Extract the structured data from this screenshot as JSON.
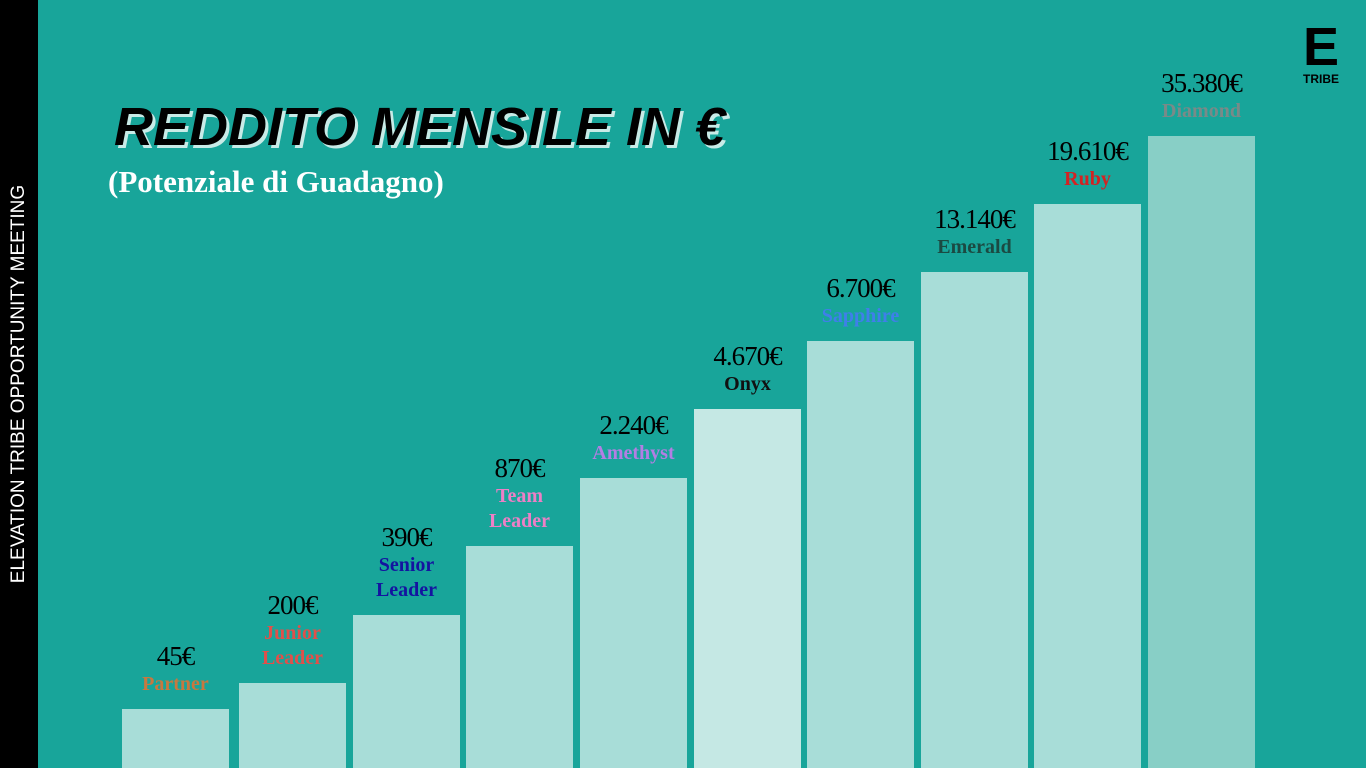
{
  "sidebar": "ELEVATION TRIBE OPPORTUNITY MEETING",
  "logo": {
    "letter": "E",
    "text": "TRIBE"
  },
  "title": "REDDITO MENSILE IN €",
  "subtitle": "(Potenziale di Guadagno)",
  "steps": [
    {
      "value": "45€",
      "name": "Partner",
      "name_color": "#c8783f",
      "bar_color": "#a8ddd8"
    },
    {
      "value": "200€",
      "name": "Junior Leader",
      "name_color": "#e0504a",
      "bar_color": "#a8ddd8"
    },
    {
      "value": "390€",
      "name": "Senior Leader",
      "name_color": "#1414a0",
      "bar_color": "#a8ddd8"
    },
    {
      "value": "870€",
      "name": "Team Leader",
      "name_color": "#ee7fc6",
      "bar_color": "#a8ddd8"
    },
    {
      "value": "2.240€",
      "name": "Amethyst",
      "name_color": "#b37ee4",
      "bar_color": "#a8ddd8"
    },
    {
      "value": "4.670€",
      "name": "Onyx",
      "name_color": "#111111",
      "bar_color": "#c5e8e4"
    },
    {
      "value": "6.700€",
      "name": "Sapphire",
      "name_color": "#3f7fea",
      "bar_color": "#a8ddd8"
    },
    {
      "value": "13.140€",
      "name": "Emerald",
      "name_color": "#1b4a42",
      "bar_color": "#a8ddd8"
    },
    {
      "value": "19.610€",
      "name": "Ruby",
      "name_color": "#d42222",
      "bar_color": "#a8ddd8"
    },
    {
      "value": "35.380€",
      "name": "Diamond",
      "name_color": "#7a8a88",
      "bar_color": "#88cfc6"
    }
  ]
}
